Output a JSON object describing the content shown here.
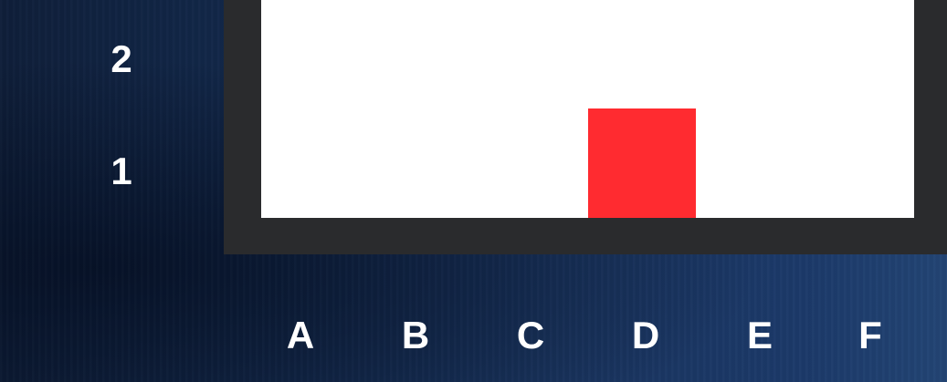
{
  "board": {
    "rows": [
      "1",
      "2"
    ],
    "columns": [
      "A",
      "B",
      "C",
      "D",
      "E",
      "F"
    ],
    "pieces": [
      {
        "column": "D",
        "row": "1",
        "color": "#ff2b30"
      }
    ],
    "frame_color": "#2a2b2d",
    "surface_color": "#ffffff"
  }
}
